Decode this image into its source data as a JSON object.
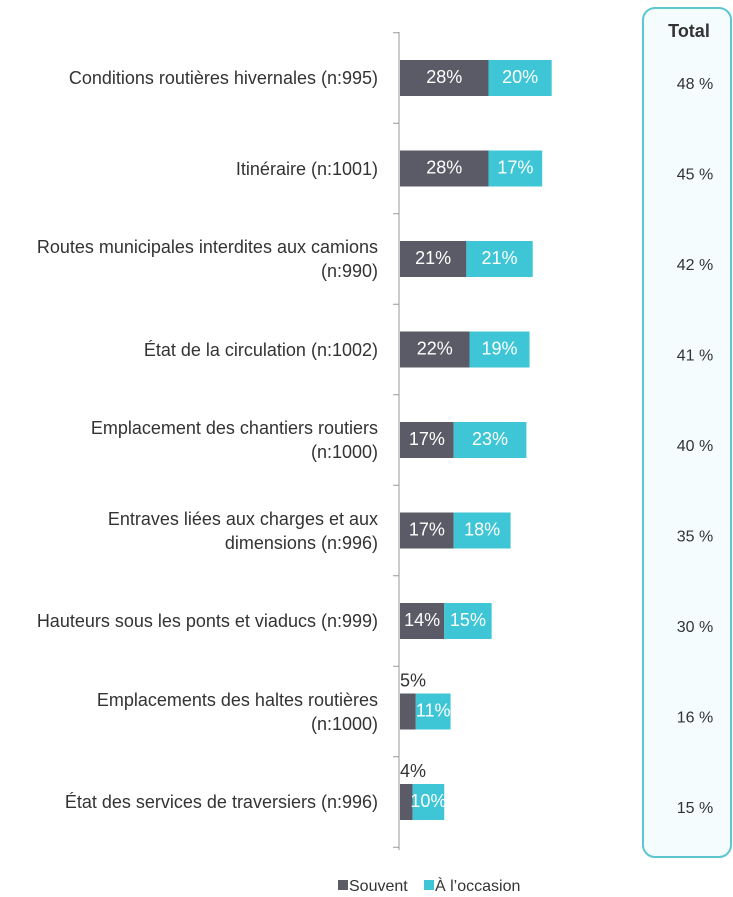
{
  "chart_data": {
    "type": "stacked-bar",
    "categories": [
      "Conditions routières hivernales (n:995)",
      "Itinéraire (n:1001)",
      "Routes municipales interdites aux camions (n:990)",
      "État de la circulation (n:1002)",
      "Emplacement des chantiers routiers (n:1000)",
      "Entraves liées aux charges et aux dimensions (n:996)",
      "Hauteurs sous les ponts et viaducs (n:999)",
      "Emplacements des haltes routières (n:1000)",
      "État des services de traversiers (n:996)"
    ],
    "series": [
      {
        "name": "Souvent",
        "color": "#5b5b67",
        "values": [
          28,
          28,
          21,
          22,
          17,
          17,
          14,
          5,
          4
        ],
        "value_labels": [
          "28%",
          "28%",
          "21%",
          "22%",
          "17%",
          "17%",
          "14%",
          "5%",
          "4%"
        ]
      },
      {
        "name": "À l’occasion",
        "color": "#3fc6d6",
        "values": [
          20,
          17,
          21,
          19,
          23,
          18,
          15,
          11,
          10
        ],
        "value_labels": [
          "20%",
          "17%",
          "21%",
          "19%",
          "23%",
          "18%",
          "15%",
          "11%",
          "10%"
        ]
      }
    ],
    "totals": {
      "title": "Total",
      "values": [
        48,
        45,
        42,
        41,
        40,
        35,
        30,
        16,
        15
      ],
      "value_labels": [
        "48 %",
        "45 %",
        "42 %",
        "41 %",
        "40 %",
        "35 %",
        "30 %",
        "16 %",
        "15 %"
      ]
    }
  }
}
